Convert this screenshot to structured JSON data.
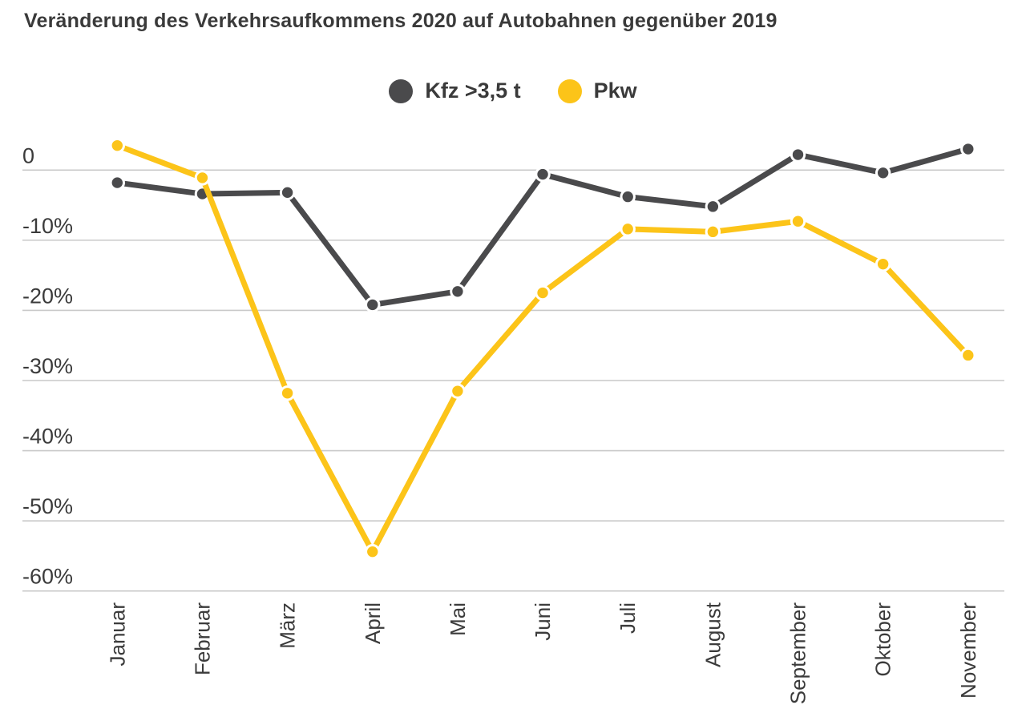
{
  "title": "Veränderung des Verkehrsaufkommens 2020 auf Autobahnen gegenüber 2019",
  "legend": {
    "items": [
      {
        "label": "Kfz >3,5 t",
        "color": "#4a4a4c"
      },
      {
        "label": "Pkw",
        "color": "#fcc419"
      }
    ]
  },
  "chart_data": {
    "type": "line",
    "title": "Veränderung des Verkehrsaufkommens 2020 auf Autobahnen gegenüber 2019",
    "categories": [
      "Januar",
      "Februar",
      "März",
      "April",
      "Mai",
      "Juni",
      "Juli",
      "August",
      "September",
      "Oktober",
      "November"
    ],
    "series": [
      {
        "name": "Kfz >3,5 t",
        "color": "#4a4a4c",
        "values": [
          -1.8,
          -3.4,
          -3.2,
          -19.2,
          -17.3,
          -0.6,
          -3.8,
          -5.2,
          2.2,
          -0.4,
          3.0
        ]
      },
      {
        "name": "Pkw",
        "color": "#fcc419",
        "values": [
          3.5,
          -1.1,
          -31.8,
          -54.4,
          -31.5,
          -17.5,
          -8.4,
          -8.8,
          -7.3,
          -13.4,
          -26.4
        ]
      }
    ],
    "xlabel": "",
    "ylabel": "",
    "y_ticks": [
      "0",
      "-10%",
      "-20%",
      "-30%",
      "-40%",
      "-50%",
      "-60%"
    ],
    "y_tick_values": [
      0,
      -10,
      -20,
      -30,
      -40,
      -50,
      -60
    ],
    "ylim": [
      -62,
      6
    ],
    "grid": true,
    "legend_position": "top-center",
    "x_tick_rotation": 90
  }
}
